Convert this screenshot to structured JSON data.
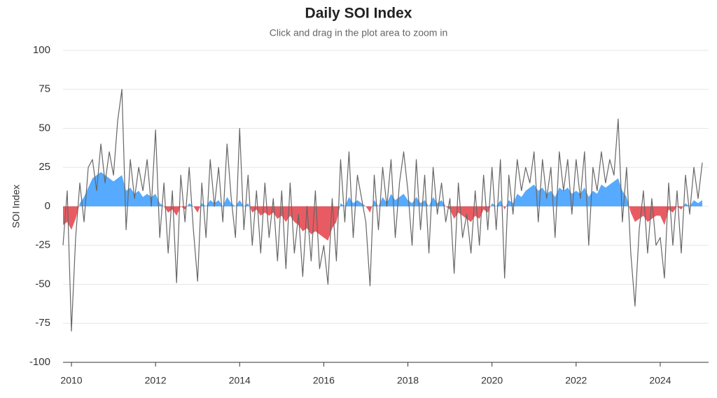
{
  "chart_data": {
    "type": "line-area",
    "title": "Daily SOI Index",
    "subtitle": "Click and drag in the plot area to zoom in",
    "y_label": "SOI Index",
    "x": [
      2009.8,
      2009.9,
      2010.0,
      2010.1,
      2010.2,
      2010.3,
      2010.4,
      2010.5,
      2010.6,
      2010.7,
      2010.8,
      2010.9,
      2011.0,
      2011.1,
      2011.2,
      2011.3,
      2011.4,
      2011.5,
      2011.6,
      2011.7,
      2011.8,
      2011.9,
      2012.0,
      2012.1,
      2012.2,
      2012.3,
      2012.4,
      2012.5,
      2012.6,
      2012.7,
      2012.8,
      2012.9,
      2013.0,
      2013.1,
      2013.2,
      2013.3,
      2013.4,
      2013.5,
      2013.6,
      2013.7,
      2013.8,
      2013.9,
      2014.0,
      2014.1,
      2014.2,
      2014.3,
      2014.4,
      2014.5,
      2014.6,
      2014.7,
      2014.8,
      2014.9,
      2015.0,
      2015.1,
      2015.2,
      2015.3,
      2015.4,
      2015.5,
      2015.6,
      2015.7,
      2015.8,
      2015.9,
      2016.0,
      2016.1,
      2016.2,
      2016.3,
      2016.4,
      2016.5,
      2016.6,
      2016.7,
      2016.8,
      2016.9,
      2017.0,
      2017.1,
      2017.2,
      2017.3,
      2017.4,
      2017.5,
      2017.6,
      2017.7,
      2017.8,
      2017.9,
      2018.0,
      2018.1,
      2018.2,
      2018.3,
      2018.4,
      2018.5,
      2018.6,
      2018.7,
      2018.8,
      2018.9,
      2019.0,
      2019.1,
      2019.2,
      2019.3,
      2019.4,
      2019.5,
      2019.6,
      2019.7,
      2019.8,
      2019.9,
      2020.0,
      2020.1,
      2020.2,
      2020.3,
      2020.4,
      2020.5,
      2020.6,
      2020.7,
      2020.8,
      2020.9,
      2021.0,
      2021.1,
      2021.2,
      2021.3,
      2021.4,
      2021.5,
      2021.6,
      2021.7,
      2021.8,
      2021.9,
      2022.0,
      2022.1,
      2022.2,
      2022.3,
      2022.4,
      2022.5,
      2022.6,
      2022.7,
      2022.8,
      2022.9,
      2023.0,
      2023.1,
      2023.2,
      2023.3,
      2023.4,
      2023.5,
      2023.6,
      2023.7,
      2023.8,
      2023.9,
      2024.0,
      2024.1,
      2024.2,
      2024.3,
      2024.4,
      2024.5,
      2024.6,
      2024.7,
      2024.8,
      2024.9,
      2025.0
    ],
    "series": [
      {
        "kind": "line",
        "color": "#666666",
        "values": [
          -25,
          10,
          -80,
          -20,
          15,
          -10,
          25,
          30,
          10,
          40,
          15,
          35,
          20,
          55,
          75,
          -15,
          30,
          5,
          25,
          10,
          30,
          0,
          49,
          -20,
          15,
          -30,
          10,
          -49,
          20,
          -10,
          25,
          -15,
          -48,
          15,
          -20,
          30,
          0,
          25,
          -10,
          40,
          5,
          -20,
          50,
          -15,
          20,
          -25,
          10,
          -30,
          15,
          -20,
          5,
          -35,
          10,
          -40,
          15,
          -30,
          -5,
          -45,
          0,
          -35,
          10,
          -40,
          -25,
          -50,
          5,
          -35,
          30,
          -10,
          35,
          -20,
          20,
          5,
          -10,
          -51,
          20,
          -15,
          25,
          0,
          30,
          -20,
          15,
          35,
          10,
          -25,
          30,
          -15,
          20,
          -30,
          25,
          -5,
          15,
          -10,
          5,
          -43,
          15,
          -20,
          -5,
          -30,
          10,
          -25,
          20,
          -15,
          25,
          -15,
          30,
          -46,
          20,
          -5,
          30,
          10,
          25,
          15,
          35,
          -10,
          30,
          5,
          25,
          -20,
          35,
          10,
          30,
          -5,
          30,
          5,
          35,
          -25,
          25,
          10,
          35,
          15,
          30,
          20,
          56,
          -10,
          25,
          -30,
          -64,
          -15,
          10,
          -30,
          5,
          -25,
          -20,
          -46,
          15,
          -25,
          10,
          -30,
          20,
          -5,
          25,
          5,
          28
        ]
      },
      {
        "kind": "area",
        "color": "#4da6ff",
        "negative_color": "#e8525a",
        "values": [
          -12,
          -10,
          -15,
          -8,
          2,
          6,
          12,
          18,
          20,
          22,
          20,
          18,
          16,
          18,
          20,
          10,
          12,
          8,
          10,
          6,
          8,
          6,
          8,
          2,
          0,
          -4,
          -2,
          -6,
          0,
          -2,
          2,
          0,
          -4,
          2,
          0,
          4,
          2,
          4,
          0,
          6,
          2,
          0,
          4,
          0,
          2,
          -4,
          -2,
          -6,
          -4,
          -6,
          -4,
          -8,
          -6,
          -10,
          -6,
          -10,
          -12,
          -16,
          -14,
          -18,
          -16,
          -18,
          -20,
          -22,
          -14,
          -10,
          2,
          0,
          6,
          2,
          4,
          2,
          0,
          -4,
          4,
          0,
          6,
          2,
          8,
          4,
          6,
          8,
          4,
          2,
          6,
          2,
          4,
          0,
          6,
          2,
          4,
          0,
          -2,
          -8,
          -4,
          -6,
          -8,
          -10,
          -6,
          -8,
          -2,
          -4,
          2,
          0,
          4,
          -2,
          4,
          2,
          8,
          6,
          10,
          12,
          14,
          10,
          12,
          8,
          10,
          6,
          12,
          10,
          12,
          8,
          10,
          8,
          12,
          6,
          10,
          8,
          14,
          12,
          14,
          16,
          18,
          10,
          6,
          -4,
          -10,
          -8,
          -6,
          -10,
          -8,
          -6,
          -6,
          -12,
          -2,
          -4,
          0,
          -2,
          2,
          0,
          4,
          2,
          4
        ]
      }
    ],
    "xlim": [
      2009.8,
      2025.15
    ],
    "xticks": [
      2010,
      2012,
      2014,
      2016,
      2018,
      2020,
      2022,
      2024
    ],
    "ylim": [
      -100,
      100
    ],
    "yticks": [
      -100,
      -75,
      -50,
      -25,
      0,
      25,
      50,
      75,
      100
    ],
    "grid": true
  }
}
